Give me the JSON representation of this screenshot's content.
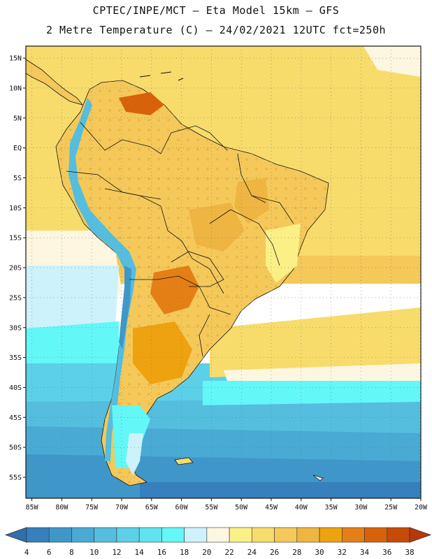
{
  "header": {
    "line1": "CPTEC/INPE/MCT –  Eta Model 15km – GFS",
    "line2": "2 Metre Temperature (C) – 24/02/2021 12UTC fct=250h"
  },
  "map": {
    "lat_labels": [
      "15N",
      "10N",
      "5N",
      "EQ",
      "5S",
      "10S",
      "15S",
      "20S",
      "25S",
      "30S",
      "35S",
      "40S",
      "45S",
      "50S",
      "55S"
    ],
    "lat_values": [
      15,
      10,
      5,
      0,
      -5,
      -10,
      -15,
      -20,
      -25,
      -30,
      -35,
      -40,
      -45,
      -50,
      -55
    ],
    "lon_labels": [
      "85W",
      "80W",
      "75W",
      "70W",
      "65W",
      "60W",
      "55W",
      "50W",
      "45W",
      "40W",
      "35W",
      "30W",
      "25W",
      "20W"
    ],
    "lon_values": [
      -85,
      -80,
      -75,
      -70,
      -65,
      -60,
      -55,
      -50,
      -45,
      -40,
      -35,
      -30,
      -25,
      -20
    ],
    "lat_range": [
      -58.5,
      17
    ],
    "lon_range": [
      -86,
      -20
    ]
  },
  "colorbar": {
    "levels": [
      "4",
      "6",
      "8",
      "10",
      "12",
      "14",
      "16",
      "18",
      "20",
      "22",
      "24",
      "26",
      "28",
      "30",
      "32",
      "34",
      "36",
      "38"
    ],
    "colors": [
      "#2f6fad",
      "#3580bd",
      "#3f97c9",
      "#49aad3",
      "#55bede",
      "#5cd0e6",
      "#60e3ee",
      "#64f7f7",
      "#cdf2fb",
      "#fdf6e1",
      "#fbf086",
      "#f7dc6c",
      "#f4c95a",
      "#eeb543",
      "#eea20f",
      "#e47f16",
      "#d8620c",
      "#c64a08",
      "#b7380a"
    ]
  },
  "colors": {
    "ocean_cold": "#2f6fad",
    "ocean_mid": "#49aad3",
    "ocean_cool": "#60e3ee",
    "ocean_warm": "#f7dc6c",
    "land_hot": "#eeb543",
    "land_very_hot": "#d8620c",
    "andes": "#55bede",
    "border": "#111111"
  }
}
